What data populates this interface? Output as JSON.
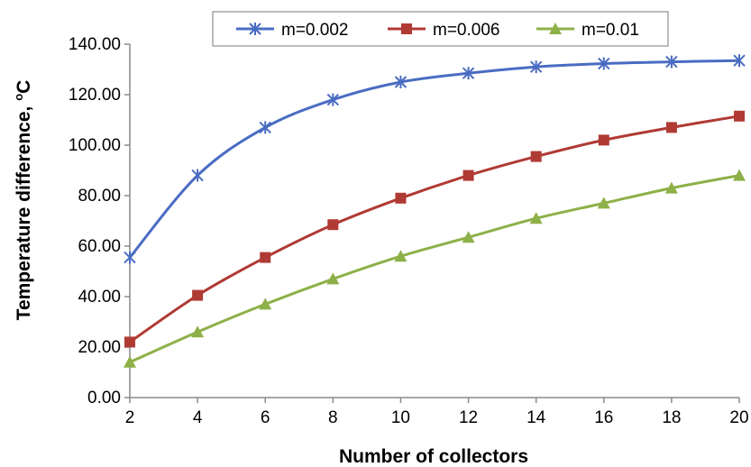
{
  "chart_data": {
    "type": "line",
    "title": "",
    "xlabel": "Number of collectors",
    "ylabel_main": "Temperature difference, ",
    "ylabel_sup": "o",
    "ylabel_unit": "C",
    "x": [
      2,
      4,
      6,
      8,
      10,
      12,
      14,
      16,
      18,
      20
    ],
    "x_ticks": [
      "2",
      "4",
      "6",
      "8",
      "10",
      "12",
      "14",
      "16",
      "18",
      "20"
    ],
    "y_ticks": [
      "0.00",
      "20.00",
      "40.00",
      "60.00",
      "80.00",
      "100.00",
      "120.00",
      "140.00"
    ],
    "xlim": [
      2,
      20
    ],
    "ylim": [
      0,
      140
    ],
    "grid": false,
    "legend_position": "top",
    "series": [
      {
        "name": "m=0.002",
        "color": "#4a6cc2",
        "marker": "star",
        "values": [
          55.5,
          88,
          107,
          118,
          125,
          128.5,
          131,
          132.3,
          133,
          133.5
        ]
      },
      {
        "name": "m=0.006",
        "color": "#b03a34",
        "marker": "square",
        "values": [
          22,
          40.5,
          55.5,
          68.5,
          79,
          88,
          95.5,
          102,
          107,
          111.5
        ]
      },
      {
        "name": "m=0.01",
        "color": "#8db048",
        "marker": "triangle",
        "values": [
          14,
          26,
          37,
          47,
          56,
          63.5,
          71,
          77,
          83,
          88
        ]
      }
    ]
  }
}
